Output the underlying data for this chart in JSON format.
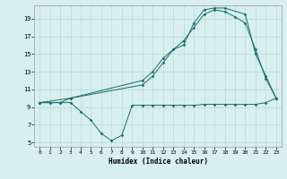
{
  "title": "",
  "xlabel": "Humidex (Indice chaleur)",
  "bg_color": "#d8efef",
  "grid_color": "#b8d8d8",
  "line_color": "#1a6b6b",
  "xlim": [
    -0.5,
    23.5
  ],
  "ylim": [
    4.5,
    20.5
  ],
  "yticks": [
    5,
    7,
    9,
    11,
    13,
    15,
    17,
    19
  ],
  "xticks": [
    0,
    1,
    2,
    3,
    4,
    5,
    6,
    7,
    8,
    9,
    10,
    11,
    12,
    13,
    14,
    15,
    16,
    17,
    18,
    19,
    20,
    21,
    22,
    23
  ],
  "series1_x": [
    0,
    1,
    2,
    3,
    4,
    5,
    6,
    7,
    8,
    9,
    10,
    11,
    12,
    13,
    14,
    15,
    16,
    17,
    18,
    19,
    20,
    21,
    22,
    23
  ],
  "series1_y": [
    9.5,
    9.5,
    9.5,
    9.5,
    8.5,
    7.5,
    6.0,
    5.2,
    5.8,
    9.2,
    9.2,
    9.2,
    9.2,
    9.2,
    9.2,
    9.2,
    9.3,
    9.3,
    9.3,
    9.3,
    9.3,
    9.3,
    9.5,
    10.0
  ],
  "series2_x": [
    0,
    2,
    3,
    10,
    11,
    12,
    13,
    14,
    15,
    16,
    17,
    18,
    19,
    20,
    21,
    22,
    23
  ],
  "series2_y": [
    9.5,
    9.5,
    10.0,
    11.5,
    12.5,
    14.0,
    15.5,
    16.5,
    18.0,
    19.5,
    20.0,
    19.8,
    19.2,
    18.5,
    15.5,
    12.2,
    10.0
  ],
  "series3_x": [
    0,
    3,
    10,
    11,
    12,
    13,
    14,
    15,
    16,
    17,
    18,
    20,
    21,
    22,
    23
  ],
  "series3_y": [
    9.5,
    10.0,
    12.0,
    13.0,
    14.5,
    15.5,
    16.0,
    18.5,
    20.0,
    20.2,
    20.2,
    19.5,
    15.0,
    12.5,
    10.0
  ]
}
